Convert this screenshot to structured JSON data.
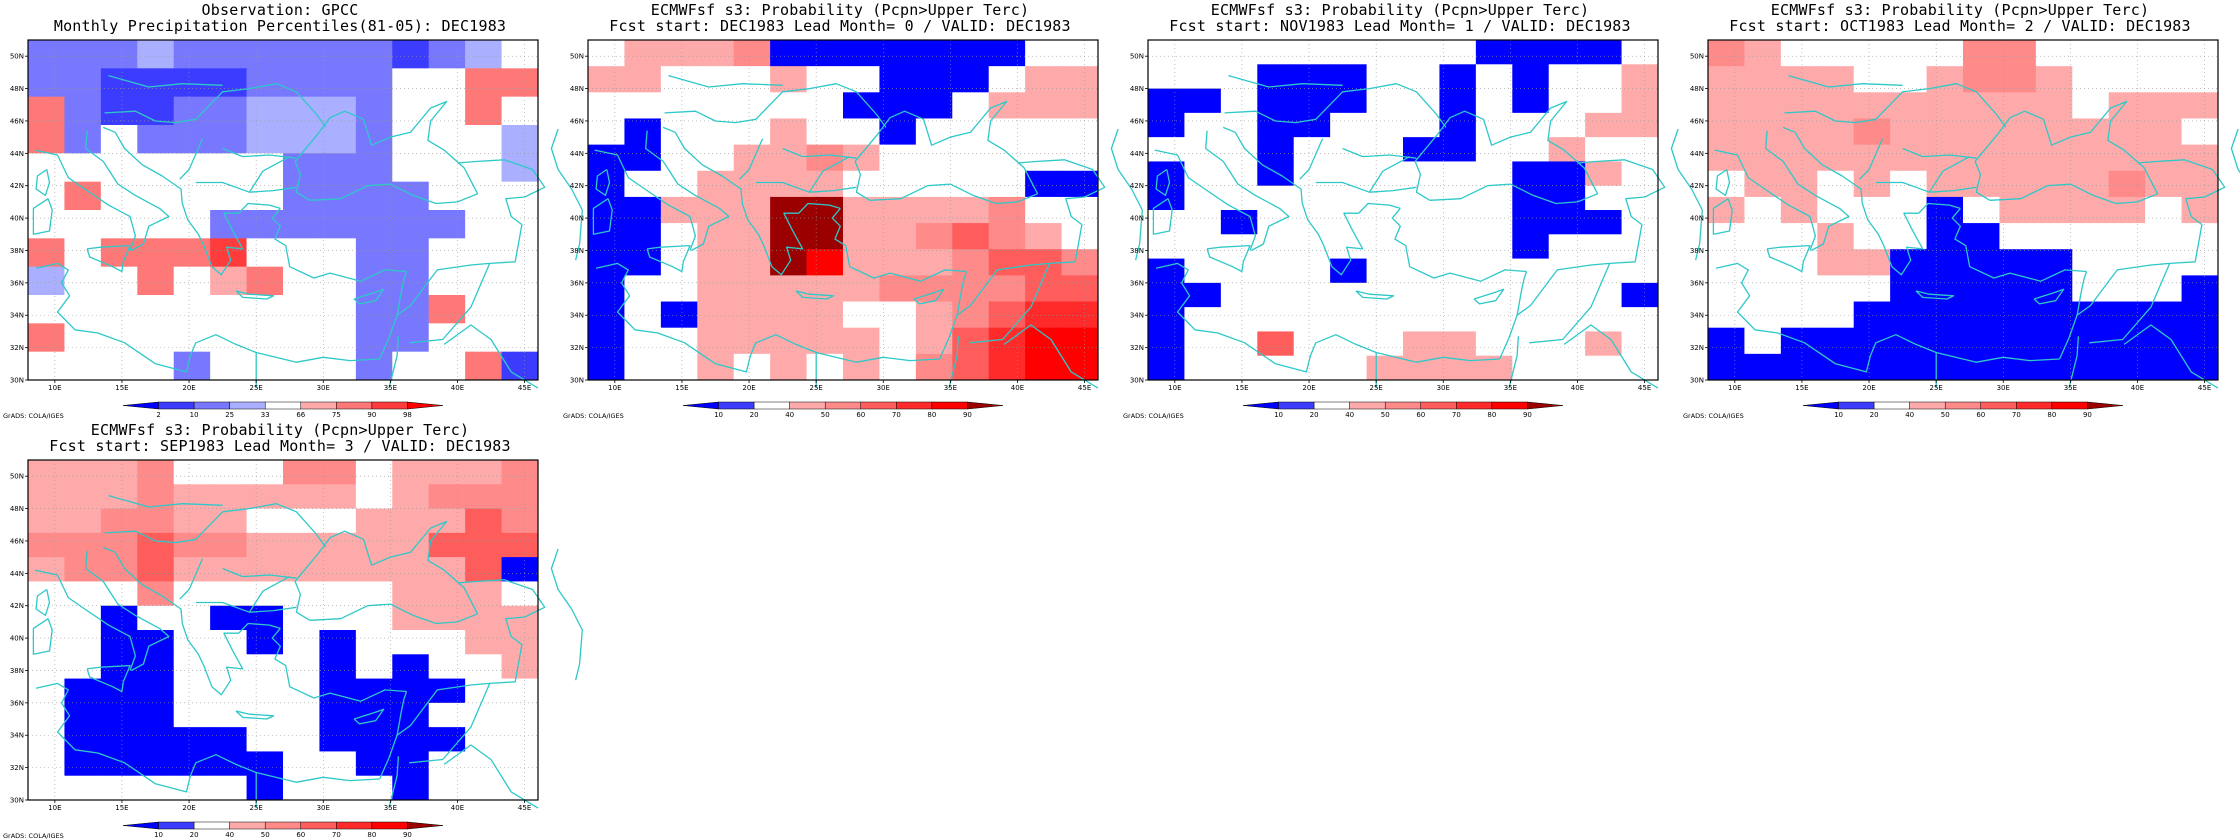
{
  "grads_credit": "GrADS: COLA/IGES",
  "lon_labels": [
    "10E",
    "15E",
    "20E",
    "25E",
    "30E",
    "35E",
    "40E",
    "45E"
  ],
  "lat_labels": [
    "30N",
    "32N",
    "34N",
    "36N",
    "38N",
    "40N",
    "42N",
    "44N",
    "46N",
    "48N",
    "50N"
  ],
  "colorbars": {
    "observation": {
      "labels": [
        "2",
        "10",
        "25",
        "33",
        "66",
        "75",
        "90",
        "98"
      ],
      "colors": [
        "#0000ff",
        "#3c3cff",
        "#7878ff",
        "#aab0ff",
        "#ffffff",
        "#ffaaaa",
        "#ff7878",
        "#ff3c3c",
        "#ff0000"
      ]
    },
    "probability": {
      "labels": [
        "10",
        "20",
        "40",
        "50",
        "60",
        "70",
        "80",
        "90"
      ],
      "colors": [
        "#0000ff",
        "#3c3cff",
        "#ffffff",
        "#ffaaaa",
        "#ff8a8a",
        "#ff5c5c",
        "#ff2a2a",
        "#ff0000",
        "#9a0000"
      ]
    }
  },
  "panels": [
    {
      "title_line1": "Observation: GPCC",
      "title_line2": "Monthly Precipitation Percentiles(81-05): DEC1983",
      "colorbar": "observation",
      "grid": [
        [
          2,
          2,
          2,
          3,
          2,
          2,
          2,
          2,
          2,
          2,
          1,
          2,
          3,
          4
        ],
        [
          2,
          2,
          1,
          1,
          1,
          1,
          2,
          2,
          2,
          2,
          4,
          4,
          6,
          6
        ],
        [
          6,
          2,
          1,
          1,
          2,
          2,
          3,
          3,
          3,
          2,
          4,
          4,
          6,
          4
        ],
        [
          6,
          2,
          4,
          2,
          2,
          2,
          3,
          3,
          3,
          2,
          4,
          4,
          4,
          3
        ],
        [
          4,
          4,
          4,
          4,
          4,
          4,
          4,
          2,
          2,
          2,
          4,
          4,
          4,
          3
        ],
        [
          4,
          6,
          4,
          4,
          4,
          4,
          4,
          2,
          2,
          2,
          2,
          4,
          4,
          4
        ],
        [
          4,
          4,
          4,
          4,
          4,
          2,
          2,
          2,
          2,
          2,
          2,
          2,
          4,
          4
        ],
        [
          6,
          4,
          6,
          6,
          6,
          7,
          4,
          4,
          4,
          2,
          2,
          4,
          4,
          4
        ],
        [
          3,
          4,
          4,
          6,
          4,
          5,
          6,
          4,
          4,
          2,
          2,
          4,
          4,
          4
        ],
        [
          4,
          4,
          4,
          4,
          4,
          4,
          4,
          4,
          4,
          2,
          2,
          6,
          4,
          4
        ],
        [
          6,
          4,
          4,
          4,
          4,
          4,
          4,
          4,
          4,
          2,
          2,
          4,
          4,
          4
        ],
        [
          4,
          4,
          4,
          4,
          2,
          4,
          4,
          4,
          4,
          2,
          4,
          4,
          6,
          1
        ]
      ]
    },
    {
      "title_line1": "ECMWFsf s3: Probability (Pcpn>Upper Terc)",
      "title_line2": "Fcst start: DEC1983  Lead Month= 0 / VALID: DEC1983",
      "colorbar": "probability",
      "grid": [
        [
          2,
          3,
          3,
          3,
          4,
          0,
          0,
          0,
          0,
          0,
          0,
          0,
          2,
          2
        ],
        [
          3,
          3,
          2,
          2,
          2,
          3,
          2,
          2,
          0,
          0,
          0,
          2,
          3,
          3
        ],
        [
          2,
          2,
          2,
          2,
          2,
          2,
          2,
          0,
          0,
          0,
          2,
          3,
          3,
          3
        ],
        [
          2,
          0,
          2,
          2,
          2,
          3,
          2,
          2,
          0,
          2,
          2,
          2,
          2,
          2
        ],
        [
          0,
          0,
          2,
          2,
          3,
          3,
          4,
          3,
          2,
          2,
          2,
          2,
          2,
          2
        ],
        [
          0,
          2,
          2,
          3,
          3,
          3,
          3,
          2,
          2,
          2,
          2,
          2,
          0,
          0
        ],
        [
          0,
          0,
          3,
          3,
          3,
          8,
          8,
          3,
          3,
          3,
          3,
          4,
          2,
          2
        ],
        [
          0,
          0,
          2,
          3,
          3,
          8,
          8,
          3,
          3,
          4,
          5,
          4,
          3,
          2
        ],
        [
          0,
          0,
          2,
          3,
          3,
          8,
          7,
          3,
          3,
          3,
          4,
          5,
          5,
          4
        ],
        [
          0,
          2,
          2,
          3,
          3,
          3,
          3,
          3,
          4,
          4,
          4,
          4,
          5,
          5
        ],
        [
          0,
          2,
          0,
          3,
          3,
          3,
          3,
          2,
          2,
          3,
          4,
          5,
          6,
          6
        ],
        [
          0,
          2,
          2,
          3,
          3,
          3,
          3,
          3,
          2,
          3,
          5,
          6,
          7,
          7
        ],
        [
          0,
          2,
          2,
          3,
          2,
          3,
          2,
          3,
          2,
          4,
          5,
          6,
          7,
          7
        ]
      ]
    },
    {
      "title_line1": "ECMWFsf s3: Probability (Pcpn>Upper Terc)",
      "title_line2": "Fcst start: NOV1983  Lead Month= 1 / VALID: DEC1983",
      "colorbar": "probability",
      "grid": [
        [
          2,
          2,
          2,
          2,
          2,
          2,
          2,
          2,
          2,
          0,
          0,
          0,
          0,
          2
        ],
        [
          2,
          2,
          2,
          0,
          0,
          0,
          2,
          2,
          0,
          2,
          0,
          2,
          2,
          3
        ],
        [
          0,
          0,
          2,
          0,
          0,
          0,
          2,
          2,
          0,
          2,
          0,
          2,
          2,
          3
        ],
        [
          0,
          2,
          2,
          0,
          0,
          2,
          2,
          2,
          0,
          2,
          2,
          2,
          3,
          3
        ],
        [
          2,
          2,
          2,
          0,
          2,
          2,
          2,
          0,
          0,
          2,
          2,
          3,
          2,
          2
        ],
        [
          0,
          2,
          2,
          0,
          2,
          2,
          2,
          2,
          2,
          2,
          0,
          0,
          3,
          2
        ],
        [
          0,
          2,
          2,
          2,
          2,
          2,
          2,
          2,
          2,
          2,
          0,
          0,
          2,
          2
        ],
        [
          2,
          2,
          0,
          2,
          2,
          2,
          2,
          2,
          2,
          2,
          0,
          0,
          0,
          2
        ],
        [
          2,
          2,
          2,
          2,
          2,
          2,
          2,
          2,
          2,
          2,
          0,
          2,
          2,
          2
        ],
        [
          0,
          2,
          2,
          2,
          2,
          0,
          2,
          2,
          2,
          2,
          2,
          2,
          2,
          2
        ],
        [
          0,
          0,
          2,
          2,
          2,
          2,
          2,
          2,
          2,
          2,
          2,
          2,
          2,
          0
        ],
        [
          0,
          2,
          2,
          2,
          2,
          2,
          2,
          2,
          2,
          2,
          2,
          2,
          2,
          2
        ],
        [
          0,
          2,
          2,
          5,
          2,
          2,
          2,
          3,
          3,
          2,
          2,
          2,
          3,
          2
        ],
        [
          0,
          2,
          2,
          2,
          2,
          2,
          3,
          3,
          3,
          3,
          2,
          2,
          2,
          2
        ]
      ]
    },
    {
      "title_line1": "ECMWFsf s3: Probability (Pcpn>Upper Terc)",
      "title_line2": "Fcst start: OCT1983  Lead Month= 2 / VALID: DEC1983",
      "colorbar": "probability",
      "grid": [
        [
          4,
          3,
          2,
          2,
          2,
          2,
          2,
          4,
          4,
          2,
          2,
          2,
          2,
          2
        ],
        [
          3,
          3,
          3,
          3,
          2,
          2,
          3,
          4,
          4,
          3,
          2,
          2,
          2,
          2
        ],
        [
          3,
          3,
          3,
          3,
          3,
          3,
          3,
          3,
          3,
          3,
          2,
          3,
          3,
          3
        ],
        [
          3,
          3,
          3,
          3,
          4,
          3,
          3,
          3,
          3,
          3,
          3,
          3,
          3,
          2
        ],
        [
          3,
          3,
          3,
          3,
          3,
          3,
          3,
          3,
          3,
          3,
          3,
          3,
          3,
          3
        ],
        [
          2,
          3,
          3,
          2,
          3,
          2,
          3,
          3,
          3,
          3,
          3,
          4,
          3,
          3
        ],
        [
          3,
          2,
          3,
          2,
          2,
          2,
          0,
          2,
          3,
          3,
          3,
          3,
          2,
          3
        ],
        [
          2,
          2,
          2,
          3,
          2,
          2,
          0,
          0,
          2,
          2,
          2,
          2,
          2,
          2
        ],
        [
          2,
          2,
          2,
          3,
          3,
          0,
          0,
          0,
          0,
          0,
          2,
          2,
          2,
          2
        ],
        [
          2,
          2,
          2,
          2,
          2,
          0,
          0,
          0,
          0,
          0,
          2,
          2,
          2,
          0
        ],
        [
          2,
          2,
          2,
          2,
          0,
          0,
          0,
          0,
          0,
          0,
          0,
          0,
          0,
          0
        ],
        [
          0,
          2,
          0,
          0,
          0,
          0,
          0,
          0,
          0,
          0,
          0,
          0,
          0,
          0
        ],
        [
          0,
          0,
          0,
          0,
          0,
          0,
          0,
          0,
          0,
          0,
          0,
          0,
          0,
          0
        ]
      ]
    },
    {
      "title_line1": "ECMWFsf s3: Probability (Pcpn>Upper Terc)",
      "title_line2": "Fcst start: SEP1983  Lead Month= 3 / VALID: DEC1983",
      "colorbar": "probability",
      "grid": [
        [
          3,
          3,
          3,
          4,
          2,
          2,
          2,
          4,
          4,
          2,
          3,
          3,
          3,
          4
        ],
        [
          3,
          3,
          3,
          4,
          3,
          3,
          3,
          3,
          3,
          2,
          3,
          4,
          4,
          4
        ],
        [
          3,
          3,
          4,
          4,
          3,
          3,
          2,
          2,
          2,
          3,
          3,
          3,
          5,
          4
        ],
        [
          4,
          4,
          4,
          5,
          4,
          4,
          3,
          3,
          3,
          3,
          3,
          5,
          5,
          5
        ],
        [
          3,
          4,
          4,
          5,
          3,
          3,
          3,
          3,
          3,
          3,
          3,
          3,
          5,
          0
        ],
        [
          2,
          2,
          2,
          4,
          2,
          2,
          2,
          2,
          2,
          2,
          3,
          3,
          3,
          2
        ],
        [
          2,
          2,
          0,
          2,
          2,
          0,
          0,
          2,
          2,
          2,
          3,
          3,
          3,
          3
        ],
        [
          2,
          2,
          0,
          0,
          2,
          2,
          0,
          2,
          0,
          2,
          2,
          2,
          3,
          3
        ],
        [
          2,
          2,
          0,
          0,
          2,
          2,
          2,
          2,
          0,
          2,
          0,
          2,
          2,
          3
        ],
        [
          2,
          0,
          0,
          0,
          2,
          2,
          2,
          2,
          0,
          0,
          0,
          0,
          2,
          2
        ],
        [
          2,
          0,
          0,
          0,
          2,
          2,
          2,
          2,
          0,
          0,
          0,
          2,
          2,
          2
        ],
        [
          2,
          0,
          0,
          0,
          0,
          0,
          2,
          2,
          0,
          0,
          0,
          0,
          2,
          2
        ],
        [
          2,
          0,
          0,
          0,
          0,
          0,
          0,
          2,
          2,
          0,
          0,
          2,
          2,
          2
        ],
        [
          2,
          2,
          2,
          2,
          2,
          2,
          0,
          2,
          2,
          2,
          0,
          2,
          2,
          2
        ]
      ]
    }
  ]
}
